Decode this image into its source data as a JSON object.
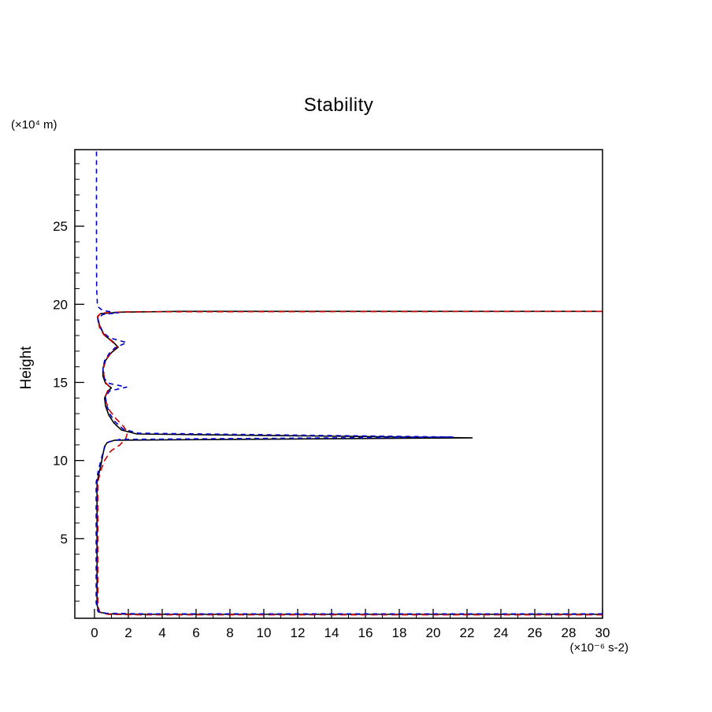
{
  "title": "Stability",
  "x_axis": {
    "unit_label": "(×10⁻⁶ s-2)",
    "ticks": [
      0,
      2,
      4,
      6,
      8,
      10,
      12,
      14,
      16,
      18,
      20,
      22,
      24,
      26,
      28,
      30
    ],
    "minor_step": 1,
    "range": [
      0,
      30
    ]
  },
  "y_axis": {
    "label": "Height",
    "unit_label": "(×10⁴ m)",
    "ticks": [
      5,
      10,
      15,
      20,
      25
    ],
    "minor_step": 1,
    "range": [
      0,
      30
    ]
  },
  "chart_data": {
    "type": "line",
    "title": "Stability",
    "xlabel": "(×10⁻⁶ s-2)",
    "ylabel": "Height (×10⁴ m)",
    "xlim": [
      -1.16,
      30
    ],
    "ylim": [
      -0.1,
      29.9
    ],
    "grid": false,
    "legend": false,
    "orientation": "vertical-profile (x = stability value, y = height)",
    "series": [
      {
        "name": "profile-solid-black",
        "color": "#000000",
        "dash": "none",
        "points": [
          [
            30,
            0.15
          ],
          [
            3,
            0.15
          ],
          [
            0.8,
            0.18
          ],
          [
            0.25,
            0.3
          ],
          [
            0.15,
            0.8
          ],
          [
            0.15,
            4.0
          ],
          [
            0.15,
            8.6
          ],
          [
            0.25,
            9.1
          ],
          [
            0.4,
            9.8
          ],
          [
            0.5,
            10.4
          ],
          [
            0.6,
            10.9
          ],
          [
            0.75,
            11.15
          ],
          [
            1.2,
            11.3
          ],
          [
            22.3,
            11.45
          ],
          [
            2.5,
            11.7
          ],
          [
            1.6,
            11.95
          ],
          [
            1.15,
            12.4
          ],
          [
            0.85,
            12.9
          ],
          [
            0.65,
            13.5
          ],
          [
            0.6,
            14.0
          ],
          [
            0.75,
            14.4
          ],
          [
            1.0,
            14.65
          ],
          [
            0.65,
            14.95
          ],
          [
            0.5,
            15.4
          ],
          [
            0.5,
            15.9
          ],
          [
            0.65,
            16.4
          ],
          [
            1.0,
            16.9
          ],
          [
            1.4,
            17.25
          ],
          [
            1.1,
            17.6
          ],
          [
            0.6,
            18.0
          ],
          [
            0.35,
            18.5
          ],
          [
            0.22,
            18.9
          ],
          [
            0.18,
            19.2
          ],
          [
            0.35,
            19.4
          ],
          [
            1.6,
            19.5
          ],
          [
            5.0,
            19.55
          ],
          [
            30,
            19.55
          ]
        ]
      },
      {
        "name": "profile-dashed-red",
        "color": "#cc0000",
        "dash": "8,5",
        "points": [
          [
            30,
            0.12
          ],
          [
            3,
            0.12
          ],
          [
            0.8,
            0.15
          ],
          [
            0.3,
            0.3
          ],
          [
            0.2,
            0.8
          ],
          [
            0.2,
            4.0
          ],
          [
            0.2,
            8.6
          ],
          [
            0.35,
            9.3
          ],
          [
            0.6,
            10.0
          ],
          [
            0.95,
            10.6
          ],
          [
            1.5,
            11.0
          ],
          [
            1.85,
            11.4
          ],
          [
            1.95,
            11.8
          ],
          [
            1.7,
            12.2
          ],
          [
            1.25,
            12.7
          ],
          [
            0.9,
            13.2
          ],
          [
            0.7,
            13.7
          ],
          [
            0.65,
            14.1
          ],
          [
            0.8,
            14.5
          ],
          [
            0.9,
            14.7
          ],
          [
            0.65,
            15.0
          ],
          [
            0.55,
            15.5
          ],
          [
            0.55,
            16.0
          ],
          [
            0.7,
            16.5
          ],
          [
            1.05,
            17.0
          ],
          [
            1.35,
            17.3
          ],
          [
            1.0,
            17.65
          ],
          [
            0.55,
            18.05
          ],
          [
            0.3,
            18.5
          ],
          [
            0.22,
            18.95
          ],
          [
            0.2,
            19.25
          ],
          [
            0.4,
            19.45
          ],
          [
            1.8,
            19.52
          ],
          [
            30,
            19.55
          ]
        ]
      },
      {
        "name": "profile-dashed-blue",
        "color": "#0000cc",
        "dash": "6,5",
        "points": [
          [
            30,
            0.18
          ],
          [
            3,
            0.18
          ],
          [
            0.7,
            0.22
          ],
          [
            0.2,
            0.35
          ],
          [
            0.1,
            0.9
          ],
          [
            0.1,
            4.0
          ],
          [
            0.1,
            8.6
          ],
          [
            0.2,
            9.2
          ],
          [
            0.35,
            9.9
          ],
          [
            0.5,
            10.5
          ],
          [
            0.65,
            11.0
          ],
          [
            0.85,
            11.2
          ],
          [
            1.5,
            11.35
          ],
          [
            21.2,
            11.5
          ],
          [
            2.6,
            11.75
          ],
          [
            1.7,
            12.0
          ],
          [
            1.2,
            12.5
          ],
          [
            0.9,
            13.0
          ],
          [
            0.7,
            13.6
          ],
          [
            0.65,
            14.1
          ],
          [
            0.9,
            14.45
          ],
          [
            1.9,
            14.7
          ],
          [
            0.8,
            14.95
          ],
          [
            0.55,
            15.3
          ],
          [
            0.5,
            15.9
          ],
          [
            0.6,
            16.4
          ],
          [
            0.9,
            16.9
          ],
          [
            1.2,
            17.2
          ],
          [
            1.9,
            17.55
          ],
          [
            0.9,
            17.85
          ],
          [
            0.5,
            18.2
          ],
          [
            0.3,
            18.7
          ],
          [
            0.2,
            19.1
          ],
          [
            0.5,
            19.35
          ],
          [
            1.4,
            19.45
          ],
          [
            0.5,
            19.6
          ],
          [
            0.18,
            19.85
          ],
          [
            0.13,
            21.0
          ],
          [
            0.12,
            25.0
          ],
          [
            0.12,
            29.8
          ]
        ]
      }
    ]
  }
}
